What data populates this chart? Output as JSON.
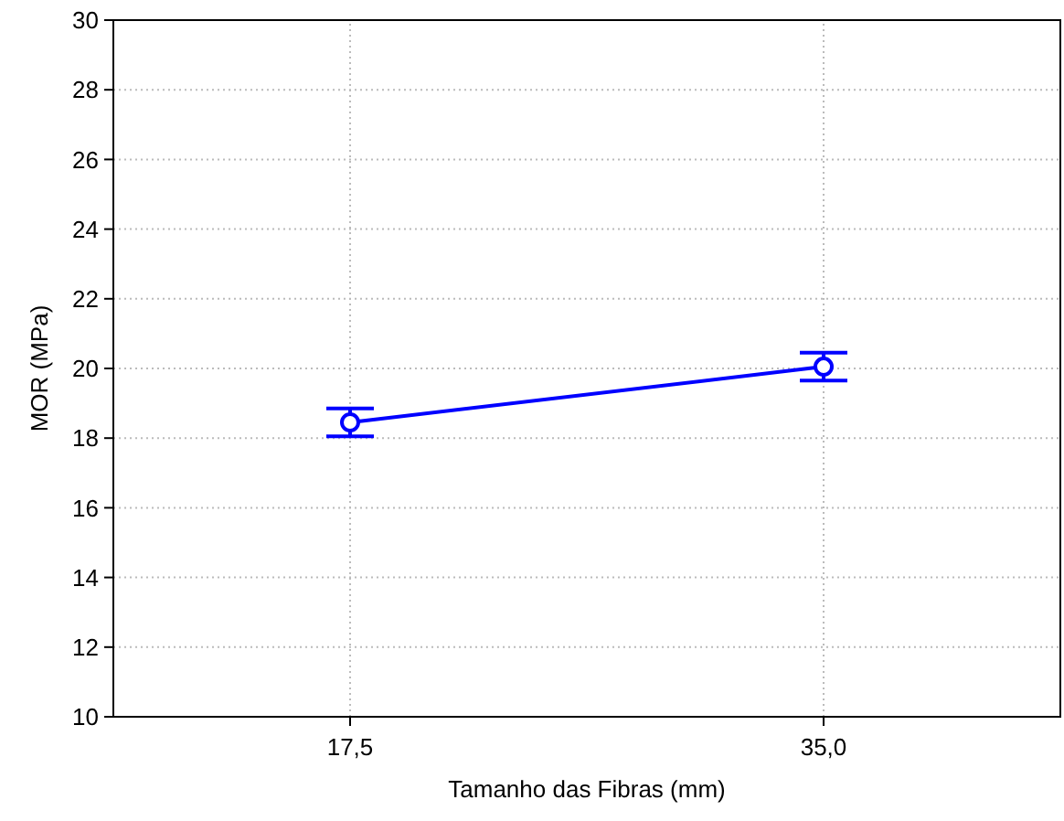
{
  "chart_data": {
    "type": "line",
    "xlabel": "Tamanho das Fibras (mm)",
    "ylabel": "MOR (MPa)",
    "categories": [
      "17,5",
      "35,0"
    ],
    "series": [
      {
        "color": "#0000ff",
        "values": [
          18.45,
          20.05
        ],
        "errors": [
          0.4,
          0.4
        ]
      }
    ],
    "ylim": [
      10,
      30
    ],
    "yticks": [
      10,
      12,
      14,
      16,
      18,
      20,
      22,
      24,
      26,
      28,
      30
    ],
    "grid": true,
    "marker": "circle",
    "line_style": "solid"
  }
}
